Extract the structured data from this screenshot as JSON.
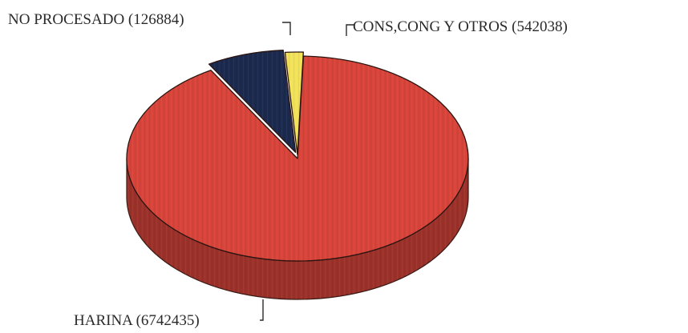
{
  "chart_data": {
    "type": "pie",
    "title": "",
    "style": "3d-exploded",
    "slices": [
      {
        "name": "HARINA",
        "value": 6742435,
        "label": "HARINA (6742435)",
        "color": "#d8443a"
      },
      {
        "name": "CONS,CONG Y OTROS",
        "value": 542038,
        "label": "CONS,CONG Y OTROS (542038)",
        "color": "#1b2a4e"
      },
      {
        "name": "NO PROCESADO",
        "value": 126884,
        "label": "NO PROCESADO (126884)",
        "color": "#f2e25a"
      }
    ]
  }
}
